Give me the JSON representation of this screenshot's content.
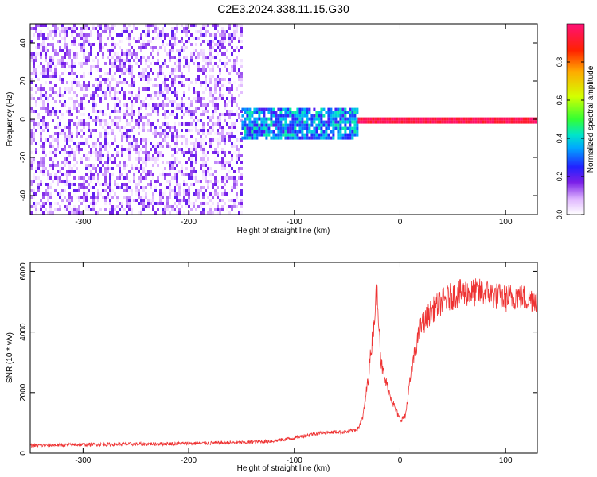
{
  "title": "C2E3.2024.338.11.15.G30",
  "chart_data": [
    {
      "type": "heatmap",
      "xlabel": "Height of straight line (km)",
      "ylabel": "Frequency (Hz)",
      "xlim": [
        -350,
        130
      ],
      "ylim": [
        -50,
        50
      ],
      "xticks": [
        -300,
        -200,
        -100,
        0,
        100
      ],
      "yticks": [
        -40,
        -20,
        0,
        20,
        40
      ],
      "colorbar": {
        "label": "Normalized spectral amplitude",
        "range": [
          0,
          1
        ],
        "ticks": [
          0.0,
          0.2,
          0.4,
          0.6,
          0.8
        ]
      },
      "regions": [
        {
          "x": [
            -350,
            -150
          ],
          "freq": [
            -50,
            50
          ],
          "amplitude": [
            0.0,
            0.2
          ]
        },
        {
          "x": [
            -150,
            -40
          ],
          "freq": [
            -10,
            6
          ],
          "amplitude": [
            0.2,
            0.45
          ]
        },
        {
          "x": [
            -40,
            130
          ],
          "freq": [
            -1,
            1
          ],
          "amplitude": [
            0.9,
            1.0
          ]
        }
      ]
    },
    {
      "type": "line",
      "xlabel": "Height of straight line (km)",
      "ylabel": "SNR (10 * v/v)",
      "xlim": [
        -350,
        130
      ],
      "ylim": [
        0,
        6300
      ],
      "xticks": [
        -300,
        -200,
        -100,
        0,
        100
      ],
      "yticks": [
        0,
        2000,
        4000,
        6000
      ],
      "color": "#ee3333",
      "series": [
        {
          "x": [
            -350,
            -300,
            -250,
            -200,
            -150,
            -120,
            -100,
            -80,
            -60,
            -50,
            -40,
            -35,
            -30,
            -25,
            -22,
            -20,
            -18,
            -15,
            -10,
            -5,
            0,
            5,
            10,
            15,
            20,
            30,
            40,
            50,
            60,
            70,
            80,
            90,
            100,
            110,
            120,
            130
          ],
          "y": [
            250,
            280,
            300,
            320,
            350,
            400,
            500,
            650,
            700,
            700,
            800,
            1200,
            2500,
            4200,
            5400,
            4500,
            3000,
            2500,
            2000,
            1500,
            1100,
            1200,
            2500,
            3500,
            4200,
            4700,
            5000,
            5200,
            5300,
            5300,
            5300,
            5200,
            5100,
            5200,
            5100,
            5100
          ]
        }
      ]
    }
  ]
}
